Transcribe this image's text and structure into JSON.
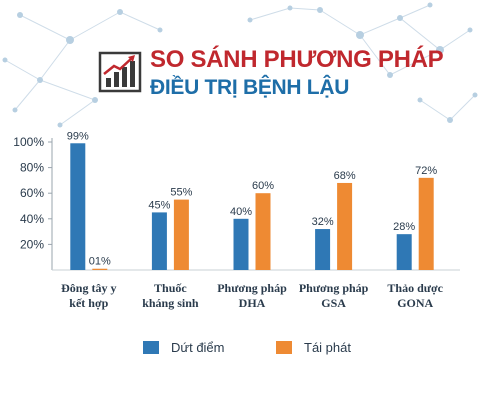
{
  "header": {
    "title_line1": "SO SÁNH PHƯƠNG PHÁP",
    "title_line2": "ĐIỀU TRỊ BỆNH LẬU",
    "icon": "growth-chart-icon",
    "title_color": "#c0282e",
    "subtitle_color": "#1e6ea8"
  },
  "chart_data": {
    "type": "bar",
    "title": "",
    "xlabel": "",
    "ylabel": "",
    "categories": [
      [
        "Đông tây y",
        "kết hợp"
      ],
      [
        "Thuốc",
        "kháng sinh"
      ],
      [
        "Phương pháp",
        "DHA"
      ],
      [
        "Phương pháp",
        "GSA"
      ],
      [
        "Thảo dược",
        "GONA"
      ]
    ],
    "series": [
      {
        "name": "Dứt điểm",
        "color": "#2f78b5",
        "values": [
          99,
          45,
          40,
          32,
          28
        ],
        "labels": [
          "99%",
          "45%",
          "40%",
          "32%",
          "28%"
        ]
      },
      {
        "name": "Tái phát",
        "color": "#ee8a33",
        "values": [
          1,
          55,
          60,
          68,
          72
        ],
        "labels": [
          "01%",
          "55%",
          "60%",
          "68%",
          "72%"
        ]
      }
    ],
    "yticks": [
      {
        "value": 20,
        "label": "20%"
      },
      {
        "value": 40,
        "label": "40%"
      },
      {
        "value": 60,
        "label": "60%"
      },
      {
        "value": 80,
        "label": "80%"
      },
      {
        "value": 100,
        "label": "100%"
      }
    ],
    "ylim": [
      0,
      100
    ],
    "grid": false,
    "legend_position": "bottom"
  }
}
